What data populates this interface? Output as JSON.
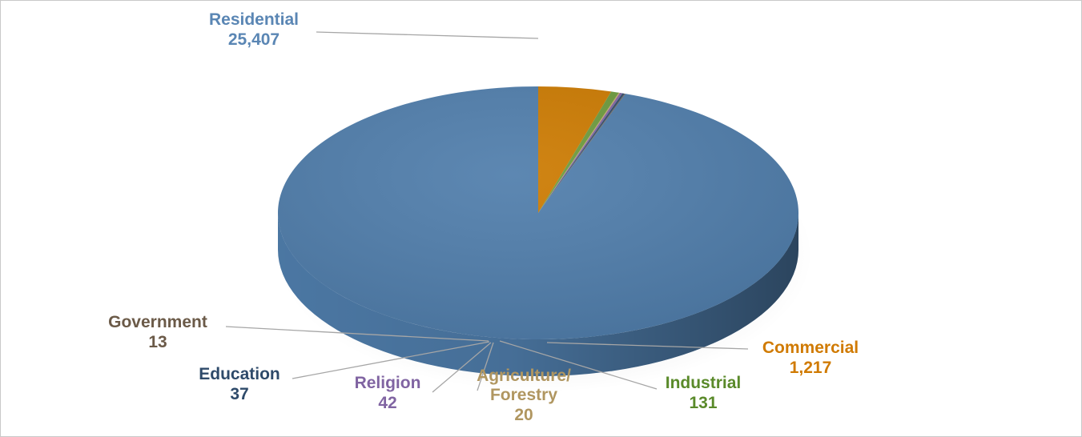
{
  "chart_data": {
    "type": "pie",
    "title": "",
    "legend": "none",
    "slices": [
      {
        "label": "Residential",
        "value": 25407,
        "value_label": "25,407",
        "color": "#4f7dab",
        "text_color": "#5a86b4"
      },
      {
        "label": "Commercial",
        "value": 1217,
        "value_label": "1,217",
        "color": "#cc7a00",
        "text_color": "#d07a00"
      },
      {
        "label": "Industrial",
        "value": 131,
        "value_label": "131",
        "color": "#6c9a3c",
        "text_color": "#5a8a2a"
      },
      {
        "label": "Agriculture/ Forestry",
        "label_lines": [
          "Agriculture/",
          "Forestry"
        ],
        "value": 20,
        "value_label": "20",
        "color": "#c7a66a",
        "text_color": "#b09660"
      },
      {
        "label": "Religion",
        "value": 42,
        "value_label": "42",
        "color": "#8064a2",
        "text_color": "#8064a2"
      },
      {
        "label": "Education",
        "value": 37,
        "value_label": "37",
        "color": "#2e4a6a",
        "text_color": "#2e4a6a"
      },
      {
        "label": "Government",
        "value": 13,
        "value_label": "13",
        "color": "#6b5a48",
        "text_color": "#6b5a48"
      }
    ]
  }
}
